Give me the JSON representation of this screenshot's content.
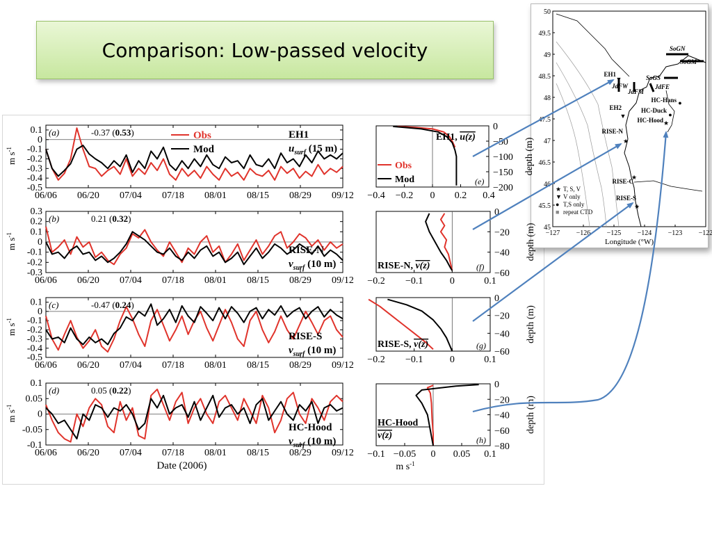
{
  "slide": {
    "title": "Comparison: Low-passed velocity"
  },
  "chart_data": [
    {
      "id": "a",
      "type": "line",
      "panel_label": "(a)",
      "station": "EH1",
      "variable": "u_surf (15 m)",
      "stats": "-0.37 (0.53)",
      "ylabel": "m s-1",
      "yticks": [
        "0.1",
        "0",
        "-0.1",
        "-0.2",
        "-0.3",
        "-0.4",
        "-0.5"
      ],
      "ylim": [
        -0.5,
        0.15
      ],
      "xticks": [
        "06/06",
        "06/20",
        "07/04",
        "07/18",
        "08/01",
        "08/15",
        "08/29",
        "09/12"
      ],
      "legend": [
        "Obs",
        "Mod"
      ],
      "series": [
        {
          "name": "Obs",
          "color": "#e0332b",
          "values": [
            -0.1,
            -0.3,
            -0.42,
            -0.35,
            -0.2,
            0.12,
            -0.1,
            -0.28,
            -0.3,
            -0.38,
            -0.32,
            -0.28,
            -0.36,
            -0.2,
            -0.38,
            -0.3,
            -0.36,
            -0.24,
            -0.32,
            -0.2,
            -0.36,
            -0.42,
            -0.3,
            -0.38,
            -0.32,
            -0.4,
            -0.28,
            -0.36,
            -0.42,
            -0.3,
            -0.38,
            -0.34,
            -0.42,
            -0.3,
            -0.36,
            -0.38,
            -0.32,
            -0.42,
            -0.28,
            -0.35,
            -0.3,
            -0.4,
            -0.33,
            -0.38,
            -0.26,
            -0.36,
            -0.3,
            -0.34,
            -0.28
          ]
        },
        {
          "name": "Mod",
          "color": "#000000",
          "values": [
            -0.1,
            -0.3,
            -0.38,
            -0.32,
            -0.25,
            -0.1,
            -0.06,
            -0.15,
            -0.2,
            -0.24,
            -0.3,
            -0.22,
            -0.28,
            -0.16,
            -0.34,
            -0.22,
            -0.3,
            -0.12,
            -0.2,
            -0.08,
            -0.26,
            -0.32,
            -0.22,
            -0.3,
            -0.2,
            -0.28,
            -0.16,
            -0.26,
            -0.3,
            -0.18,
            -0.24,
            -0.22,
            -0.3,
            -0.16,
            -0.26,
            -0.28,
            -0.2,
            -0.3,
            -0.14,
            -0.24,
            -0.2,
            -0.28,
            -0.16,
            -0.24,
            -0.12,
            -0.2,
            -0.16,
            -0.2,
            -0.14
          ]
        }
      ]
    },
    {
      "id": "b",
      "type": "line",
      "panel_label": "(b)",
      "station": "RISE-N",
      "variable": "v_surf (10 m)",
      "stats": "0.21 (0.32)",
      "ylabel": "m s-1",
      "yticks": [
        "0.3",
        "0.2",
        "0.1",
        "0",
        "-0.1",
        "-0.2",
        "-0.3"
      ],
      "ylim": [
        -0.3,
        0.3
      ],
      "xticks": [
        "06/06",
        "06/20",
        "07/04",
        "07/18",
        "08/01",
        "08/15",
        "08/29",
        "09/12"
      ],
      "series": [
        {
          "name": "Obs",
          "color": "#e0332b",
          "values": [
            0.15,
            -0.1,
            -0.05,
            0.02,
            -0.12,
            0.05,
            -0.05,
            0.0,
            -0.15,
            -0.1,
            -0.18,
            -0.22,
            -0.12,
            -0.06,
            0.08,
            0.04,
            0.12,
            0.0,
            -0.08,
            -0.14,
            0.0,
            -0.1,
            -0.2,
            -0.06,
            -0.12,
            0.0,
            0.06,
            -0.1,
            -0.04,
            -0.2,
            -0.12,
            -0.02,
            -0.18,
            -0.08,
            0.02,
            -0.12,
            -0.04,
            0.06,
            0.1,
            -0.06,
            0.0,
            0.08,
            0.04,
            -0.04,
            0.02,
            -0.08,
            0.0,
            -0.06,
            -0.02
          ]
        },
        {
          "name": "Mod",
          "color": "#000000",
          "values": [
            0.0,
            -0.12,
            -0.1,
            -0.16,
            -0.08,
            -0.04,
            -0.12,
            -0.1,
            -0.18,
            -0.14,
            -0.2,
            -0.16,
            -0.1,
            -0.02,
            0.1,
            0.06,
            0.02,
            -0.04,
            -0.1,
            -0.12,
            -0.06,
            -0.14,
            -0.18,
            -0.1,
            -0.16,
            -0.08,
            -0.04,
            -0.14,
            -0.1,
            -0.2,
            -0.16,
            -0.1,
            -0.22,
            -0.14,
            -0.06,
            -0.16,
            -0.1,
            -0.02,
            -0.06,
            -0.12,
            -0.08,
            -0.02,
            -0.06,
            -0.12,
            -0.04,
            -0.14,
            -0.08,
            -0.12,
            -0.18
          ]
        }
      ]
    },
    {
      "id": "c",
      "type": "line",
      "panel_label": "(c)",
      "station": "RISE-S",
      "variable": "v_surf (10 m)",
      "stats": "-0.47 (0.24)",
      "ylabel": "m s-1",
      "yticks": [
        "0.1",
        "0",
        "-0.1",
        "-0.2",
        "-0.3",
        "-0.4",
        "-0.5"
      ],
      "ylim": [
        -0.5,
        0.15
      ],
      "xticks": [
        "06/06",
        "06/20",
        "07/04",
        "07/18",
        "08/01",
        "08/15",
        "08/29",
        "09/12"
      ],
      "series": [
        {
          "name": "Obs",
          "color": "#e0332b",
          "values": [
            -0.05,
            -0.3,
            -0.42,
            -0.25,
            -0.1,
            -0.28,
            -0.4,
            -0.32,
            -0.2,
            -0.38,
            -0.44,
            -0.3,
            -0.1,
            0.05,
            -0.08,
            -0.25,
            -0.38,
            -0.1,
            0.02,
            -0.15,
            -0.32,
            -0.2,
            -0.05,
            -0.25,
            -0.1,
            0.0,
            -0.18,
            -0.32,
            -0.15,
            0.02,
            -0.12,
            -0.3,
            -0.38,
            -0.1,
            0.0,
            -0.2,
            -0.34,
            -0.22,
            -0.05,
            -0.2,
            -0.3,
            -0.15,
            0.0,
            -0.12,
            -0.25,
            -0.1,
            -0.05,
            -0.2,
            -0.28
          ]
        },
        {
          "name": "Mod",
          "color": "#000000",
          "values": [
            -0.2,
            -0.3,
            -0.28,
            -0.34,
            -0.18,
            -0.3,
            -0.36,
            -0.28,
            -0.34,
            -0.3,
            -0.36,
            -0.24,
            -0.18,
            -0.06,
            -0.1,
            0.0,
            -0.05,
            0.08,
            -0.15,
            -0.08,
            0.02,
            -0.12,
            0.06,
            -0.05,
            -0.12,
            0.05,
            -0.02,
            -0.1,
            0.04,
            -0.08,
            0.05,
            -0.02,
            -0.12,
            0.0,
            0.04,
            -0.08,
            0.02,
            -0.04,
            0.06,
            -0.06,
            0.0,
            0.04,
            -0.08,
            0.0,
            0.05,
            -0.06,
            0.02,
            -0.04,
            -0.08
          ]
        }
      ]
    },
    {
      "id": "d",
      "type": "line",
      "panel_label": "(d)",
      "station": "HC-Hood",
      "variable": "v_surf (10 m)",
      "stats": "0.05 (0.22)",
      "ylabel": "m s-1",
      "yticks": [
        "0.1",
        "0.05",
        "0",
        "-0.05",
        "-0.1"
      ],
      "ylim": [
        -0.1,
        0.1
      ],
      "xticks": [
        "06/06",
        "06/20",
        "07/04",
        "07/18",
        "08/01",
        "08/15",
        "08/29",
        "09/12"
      ],
      "xlabel": "Date (2006)",
      "series": [
        {
          "name": "Obs",
          "color": "#e0332b",
          "values": [
            0.03,
            -0.02,
            -0.06,
            -0.08,
            -0.09,
            0.0,
            -0.04,
            0.02,
            0.05,
            0.03,
            -0.04,
            -0.06,
            0.04,
            -0.02,
            0.02,
            -0.07,
            -0.08,
            0.06,
            0.08,
            0.03,
            -0.02,
            0.04,
            0.07,
            -0.03,
            0.02,
            0.05,
            0.0,
            -0.03,
            0.04,
            0.06,
            0.02,
            -0.02,
            0.05,
            0.01,
            -0.03,
            0.06,
            0.02,
            -0.06,
            -0.02,
            0.05,
            0.07,
            0.0,
            -0.03,
            0.05,
            0.02,
            -0.02,
            0.04,
            0.06,
            0.04
          ]
        },
        {
          "name": "Mod",
          "color": "#000000",
          "values": [
            0.02,
            0.0,
            -0.03,
            -0.02,
            -0.05,
            -0.08,
            0.0,
            -0.02,
            0.03,
            0.02,
            -0.01,
            0.02,
            0.01,
            0.03,
            0.0,
            -0.05,
            -0.03,
            0.05,
            0.02,
            0.06,
            0.0,
            0.02,
            0.03,
            -0.01,
            0.04,
            -0.02,
            0.02,
            0.06,
            -0.01,
            0.02,
            0.03,
            0.0,
            0.02,
            -0.03,
            0.03,
            0.05,
            -0.02,
            0.01,
            0.04,
            0.0,
            -0.02,
            0.03,
            0.01,
            0.04,
            -0.03,
            0.02,
            0.03,
            0.01,
            0.02
          ]
        }
      ]
    },
    {
      "id": "e",
      "type": "line",
      "panel_label": "(e)",
      "station": "EH1,",
      "variable_overlined": "u(z)",
      "ylabel_right": "depth (m)",
      "yticks": [
        "0",
        "-50",
        "-100",
        "-150",
        "-200"
      ],
      "ylim": [
        -200,
        0
      ],
      "xticks": [
        "-0.4",
        "-0.2",
        "0",
        "0.2",
        "0.4"
      ],
      "xlim": [
        -0.4,
        0.4
      ],
      "legend": [
        "Obs",
        "Mod"
      ],
      "series": [
        {
          "name": "Obs",
          "color": "#e0332b",
          "points": [
            [
              -0.25,
              -2
            ],
            [
              -0.12,
              -5
            ],
            [
              0.0,
              -10
            ],
            [
              0.08,
              -20
            ],
            [
              0.12,
              -35
            ],
            [
              0.14,
              -50
            ],
            [
              0.16,
              -70
            ]
          ]
        },
        {
          "name": "Mod",
          "color": "#000000",
          "points": [
            [
              -0.28,
              -2
            ],
            [
              -0.2,
              -5
            ],
            [
              -0.08,
              -10
            ],
            [
              0.04,
              -20
            ],
            [
              0.1,
              -35
            ],
            [
              0.14,
              -55
            ],
            [
              0.16,
              -80
            ],
            [
              0.17,
              -100
            ],
            [
              0.17,
              -130
            ],
            [
              0.17,
              -160
            ],
            [
              0.17,
              -195
            ]
          ]
        }
      ]
    },
    {
      "id": "f",
      "type": "line",
      "panel_label": "(f)",
      "station": "RISE-N,",
      "variable_overlined": "v(z)",
      "ylabel_right": "depth (m)",
      "yticks": [
        "0",
        "-20",
        "-40",
        "-60"
      ],
      "ylim": [
        -60,
        0
      ],
      "xticks": [
        "-0.2",
        "-0.1",
        "0",
        "0.1"
      ],
      "xlim": [
        -0.2,
        0.1
      ],
      "series": [
        {
          "name": "Obs",
          "color": "#e0332b",
          "points": [
            [
              -0.02,
              -2
            ],
            [
              -0.03,
              -8
            ],
            [
              -0.02,
              -14
            ],
            [
              -0.03,
              -20
            ],
            [
              -0.015,
              -28
            ],
            [
              -0.02,
              -35
            ],
            [
              -0.01,
              -42
            ],
            [
              -0.005,
              -50
            ],
            [
              0.0,
              -58
            ]
          ]
        },
        {
          "name": "Mod",
          "color": "#000000",
          "points": [
            [
              -0.06,
              -2
            ],
            [
              -0.07,
              -10
            ],
            [
              -0.06,
              -20
            ],
            [
              -0.045,
              -30
            ],
            [
              -0.03,
              -40
            ],
            [
              -0.015,
              -48
            ],
            [
              -0.005,
              -55
            ],
            [
              0.0,
              -58
            ]
          ]
        }
      ]
    },
    {
      "id": "g",
      "type": "line",
      "panel_label": "(g)",
      "station": "RISE-S,",
      "variable_overlined": "v(z)",
      "ylabel_right": "depth (m)",
      "yticks": [
        "0",
        "-20",
        "-40",
        "-60"
      ],
      "ylim": [
        -60,
        0
      ],
      "xticks": [
        "-0.2",
        "-0.1",
        "0",
        "0.1"
      ],
      "xlim": [
        -0.2,
        0.1
      ],
      "series": [
        {
          "name": "Obs",
          "color": "#e0332b",
          "points": [
            [
              -0.22,
              -2
            ],
            [
              -0.19,
              -10
            ],
            [
              -0.16,
              -20
            ],
            [
              -0.13,
              -30
            ],
            [
              -0.1,
              -40
            ],
            [
              -0.07,
              -50
            ],
            [
              -0.05,
              -58
            ]
          ]
        },
        {
          "name": "Mod",
          "color": "#000000",
          "points": [
            [
              -0.17,
              -2
            ],
            [
              -0.12,
              -8
            ],
            [
              -0.08,
              -15
            ],
            [
              -0.05,
              -25
            ],
            [
              -0.03,
              -35
            ],
            [
              -0.015,
              -45
            ],
            [
              -0.005,
              -55
            ],
            [
              0.0,
              -60
            ]
          ]
        }
      ]
    },
    {
      "id": "h",
      "type": "line",
      "panel_label": "(h)",
      "station": "HC-Hood",
      "variable_overlined": "v(z)",
      "ylabel_right": "depth (m)",
      "yticks": [
        "0",
        "-20",
        "-40",
        "-60",
        "-80"
      ],
      "ylim": [
        -80,
        0
      ],
      "xticks": [
        "-0.1",
        "-0.05",
        "0",
        "0.05",
        "0.1"
      ],
      "xlim": [
        -0.1,
        0.1
      ],
      "xlabel": "m s-1",
      "series": [
        {
          "name": "Obs",
          "color": "#e0332b",
          "points": [
            [
              0.0,
              -2
            ],
            [
              -0.01,
              -5
            ],
            [
              -0.005,
              -12
            ],
            [
              -0.003,
              -25
            ],
            [
              -0.002,
              -45
            ],
            [
              0.0,
              -65
            ],
            [
              0.0,
              -80
            ]
          ]
        },
        {
          "name": "Mod",
          "color": "#000000",
          "points": [
            [
              0.08,
              -1
            ],
            [
              0.04,
              -3
            ],
            [
              -0.02,
              -8
            ],
            [
              -0.03,
              -15
            ],
            [
              -0.02,
              -25
            ],
            [
              -0.01,
              -40
            ],
            [
              -0.005,
              -60
            ],
            [
              0.0,
              -80
            ]
          ]
        }
      ]
    }
  ],
  "map": {
    "lat_ticks": [
      "50",
      "49.5",
      "49",
      "48.5",
      "48",
      "47.5",
      "47",
      "46.5",
      "46",
      "45.5",
      "45"
    ],
    "lon_ticks": [
      "-127",
      "-126",
      "-125",
      "-124",
      "-123",
      "-122"
    ],
    "xlabel": "Longitude (°W)",
    "stations": [
      {
        "name": "EH1",
        "marker": "triangle"
      },
      {
        "name": "EH2",
        "marker": "triangle"
      },
      {
        "name": "RISE-N",
        "marker": "star"
      },
      {
        "name": "RISE-C",
        "marker": "star"
      },
      {
        "name": "RISE-S",
        "marker": "star"
      },
      {
        "name": "HC-Hans",
        "marker": "dot"
      },
      {
        "name": "HC-Duck",
        "marker": "dot"
      },
      {
        "name": "HC-Hood",
        "marker": "star"
      }
    ],
    "sections": [
      "SoGN",
      "SoGM",
      "SoGS",
      "JdFW",
      "JdFM",
      "JdFE"
    ],
    "legend": [
      {
        "symbol": "★",
        "label": "T, S, V"
      },
      {
        "symbol": "▼",
        "label": "V only"
      },
      {
        "symbol": "●",
        "label": "T,S only"
      },
      {
        "symbol": "■",
        "label": "repeat CTD"
      }
    ]
  }
}
